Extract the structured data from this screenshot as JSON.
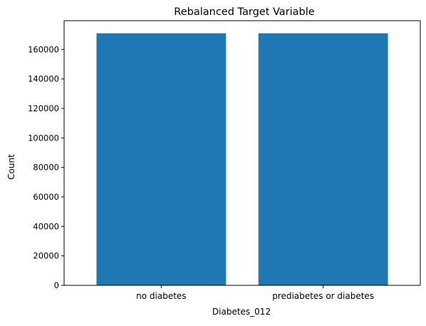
{
  "chart_data": {
    "type": "bar",
    "title": "Rebalanced Target Variable",
    "xlabel": "Diabetes_012",
    "ylabel": "Count",
    "categories": [
      "no diabetes",
      "prediabetes or diabetes"
    ],
    "values": [
      170962,
      170962
    ],
    "ylim": [
      0,
      179510
    ],
    "yticks": [
      0,
      20000,
      40000,
      60000,
      80000,
      100000,
      120000,
      140000,
      160000
    ],
    "bar_color": "#1f77b4",
    "grid": false,
    "legend": "none"
  }
}
